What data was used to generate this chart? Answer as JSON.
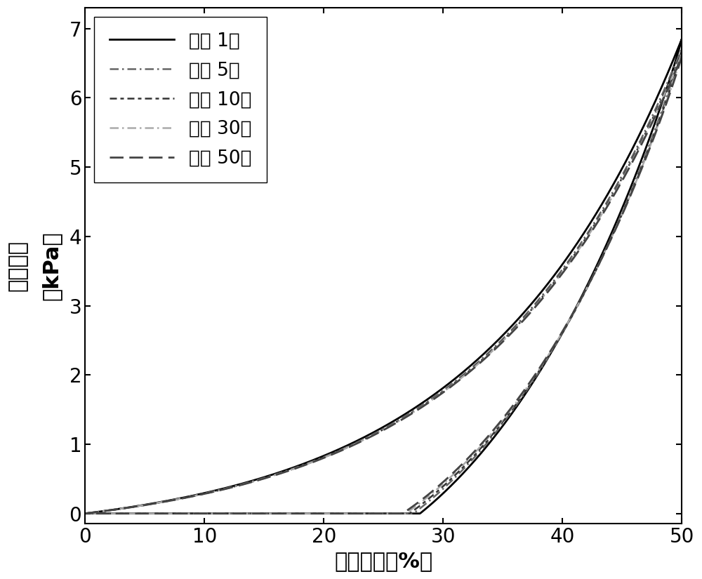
{
  "xlabel": "压缩应变（%）",
  "ylabel": "压缩应力\n（kPa）",
  "xlim": [
    0,
    50
  ],
  "ylim": [
    -0.15,
    7.3
  ],
  "xticks": [
    0,
    10,
    20,
    30,
    40,
    50
  ],
  "yticks": [
    0,
    1,
    2,
    3,
    4,
    5,
    6,
    7
  ],
  "legend_labels": [
    "循环 1次",
    "循环 5次",
    "循环 10次",
    "循环 30次",
    "循环 50次"
  ],
  "colors": [
    "#000000",
    "#666666",
    "#333333",
    "#aaaaaa",
    "#444444"
  ],
  "linewidths": [
    2.0,
    1.8,
    1.8,
    1.8,
    2.0
  ],
  "dashes_list": [
    null,
    [
      5,
      2,
      1,
      2
    ],
    [
      4,
      2,
      2,
      2
    ],
    [
      5,
      2,
      1,
      2
    ],
    [
      7,
      3
    ]
  ],
  "background_color": "#ffffff",
  "font_size_labels": 22,
  "font_size_ticks": 20,
  "font_size_legend": 19,
  "load_scales": [
    1.0,
    0.98,
    0.972,
    0.968,
    0.964
  ],
  "hyst_vals": [
    1.8,
    1.68,
    1.62,
    1.57,
    1.53
  ]
}
